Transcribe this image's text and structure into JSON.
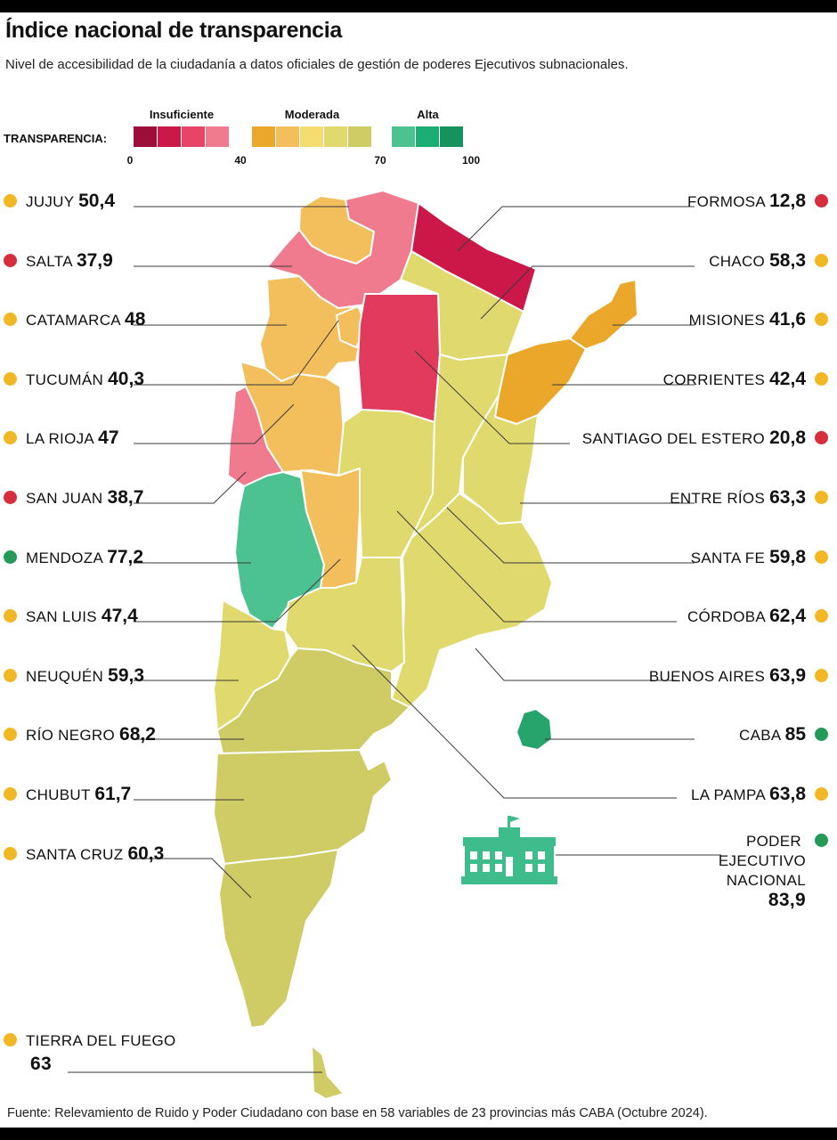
{
  "title": "Índice nacional de transparencia",
  "subtitle": "Nivel de accesibilidad de la ciudadanía a datos oficiales de gestión de poderes Ejecutivos subnacionales.",
  "legend": {
    "label": "TRANSPARENCIA:",
    "groups": [
      {
        "name": "Insuficiente",
        "colors": [
          "#9c0d3a",
          "#cc1848",
          "#e84468",
          "#f07a8e"
        ]
      },
      {
        "name": "Moderada",
        "colors": [
          "#eaa72a",
          "#f3be5c",
          "#f4dc70",
          "#e0da6e",
          "#cfcc66"
        ]
      },
      {
        "name": "Alta",
        "colors": [
          "#4cc291",
          "#1aae72",
          "#16935c"
        ]
      }
    ],
    "ticks": [
      "0",
      "40",
      "70",
      "100"
    ]
  },
  "colors": {
    "red": "#d72e3d",
    "yellow": "#f2b724",
    "green": "#249a58",
    "building": "#3fbc8c"
  },
  "regions": [
    {
      "name": "Jujuy",
      "value": "50,4",
      "cat": "yellow"
    },
    {
      "name": "Salta",
      "value": "37,9",
      "cat": "red"
    },
    {
      "name": "Catamarca",
      "value": "48",
      "cat": "yellow"
    },
    {
      "name": "Tucumán",
      "value": "40,3",
      "cat": "yellow"
    },
    {
      "name": "La Rioja",
      "value": "47",
      "cat": "yellow"
    },
    {
      "name": "San Juan",
      "value": "38,7",
      "cat": "red"
    },
    {
      "name": "Mendoza",
      "value": "77,2",
      "cat": "green"
    },
    {
      "name": "San Luis",
      "value": "47,4",
      "cat": "yellow"
    },
    {
      "name": "Neuquén",
      "value": "59,3",
      "cat": "yellow"
    },
    {
      "name": "Río Negro",
      "value": "68,2",
      "cat": "yellow"
    },
    {
      "name": "Chubut",
      "value": "61,7",
      "cat": "yellow"
    },
    {
      "name": "Santa Cruz",
      "value": "60,3",
      "cat": "yellow"
    },
    {
      "name": "Formosa",
      "value": "12,8",
      "cat": "red"
    },
    {
      "name": "Chaco",
      "value": "58,3",
      "cat": "yellow"
    },
    {
      "name": "Misiones",
      "value": "41,6",
      "cat": "yellow"
    },
    {
      "name": "Corrientes",
      "value": "42,4",
      "cat": "yellow"
    },
    {
      "name": "Santiago del Estero",
      "value": "20,8",
      "cat": "red"
    },
    {
      "name": "Entre Ríos",
      "value": "63,3",
      "cat": "yellow"
    },
    {
      "name": "Santa Fe",
      "value": "59,8",
      "cat": "yellow"
    },
    {
      "name": "Córdoba",
      "value": "62,4",
      "cat": "yellow"
    },
    {
      "name": "Buenos Aires",
      "value": "63,9",
      "cat": "yellow"
    },
    {
      "name": "CABA",
      "value": "85",
      "cat": "green"
    },
    {
      "name": "La Pampa",
      "value": "63,8",
      "cat": "yellow"
    }
  ],
  "tierra_del_fuego": {
    "name": "TIERRA DEL FUEGO",
    "value": "63",
    "cat": "yellow"
  },
  "poder_ejecutivo": {
    "lines": [
      "PODER",
      "EJECUTIVO",
      "NACIONAL"
    ],
    "value": "83,9",
    "cat": "green"
  },
  "source": "Fuente: Relevamiento de Ruido y Poder Ciudadano con base en 58 variables de 23 provincias más CABA (Octubre 2024)."
}
